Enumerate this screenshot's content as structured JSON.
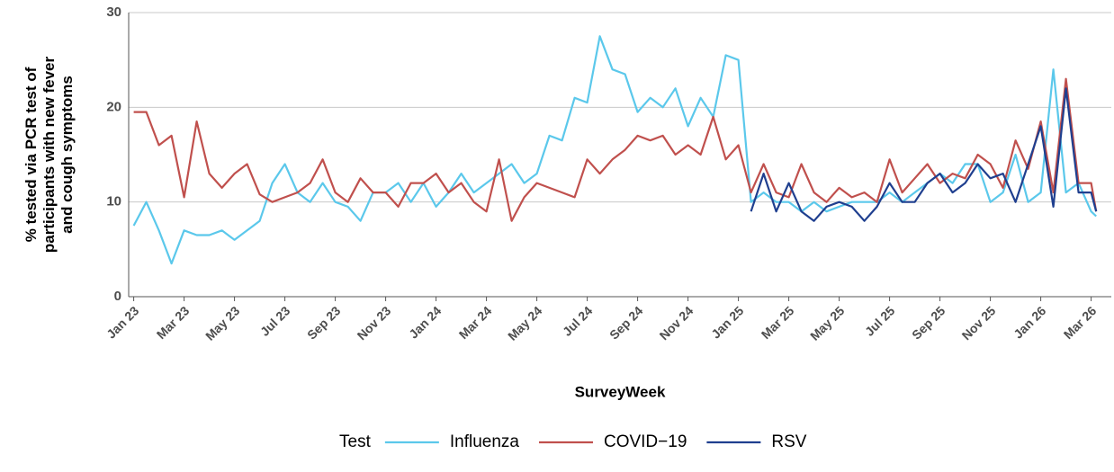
{
  "chart_data": {
    "type": "line",
    "y_label": [
      "% tested via PCR test of",
      "participants with new fever",
      "and cough symptoms"
    ],
    "x_label": "SurveyWeek",
    "legend_title": "Test",
    "legend": "bottom",
    "grid": true,
    "x": [
      0,
      0.5,
      1,
      1.5,
      2,
      2.5,
      3,
      3.5,
      4,
      4.5,
      5,
      5.5,
      6,
      6.5,
      7,
      7.5,
      8,
      8.5,
      9,
      9.5,
      10,
      10.5,
      11,
      11.5,
      12,
      12.5,
      13,
      13.5,
      14,
      14.5,
      15,
      15.5,
      16,
      16.5,
      17,
      17.5,
      18,
      18.5,
      19,
      19.5,
      20,
      20.5,
      21,
      21.5,
      22,
      22.5,
      23,
      23.5,
      24,
      24.5,
      25,
      25.5,
      26,
      26.5,
      27,
      27.5,
      28,
      28.5,
      29,
      29.5,
      30,
      30.5,
      31,
      31.5,
      32,
      32.5,
      33,
      33.5,
      34,
      34.5,
      35,
      35.5,
      36,
      36.5,
      37,
      37.5,
      38,
      38.2
    ],
    "xlim": [
      -0.2,
      38.8
    ],
    "xticks": [
      {
        "value": 0,
        "label": "Jan 23"
      },
      {
        "value": 2,
        "label": "Mar 23"
      },
      {
        "value": 4,
        "label": "May 23"
      },
      {
        "value": 6,
        "label": "Jul 23"
      },
      {
        "value": 8,
        "label": "Sep 23"
      },
      {
        "value": 10,
        "label": "Nov 23"
      },
      {
        "value": 12,
        "label": "Jan 24"
      },
      {
        "value": 14,
        "label": "Mar 24"
      },
      {
        "value": 16,
        "label": "May 24"
      },
      {
        "value": 18,
        "label": "Jul 24"
      },
      {
        "value": 20,
        "label": "Sep 24"
      },
      {
        "value": 22,
        "label": "Nov 24"
      },
      {
        "value": 24,
        "label": "Jan 25"
      },
      {
        "value": 26,
        "label": "Mar 25"
      },
      {
        "value": 28,
        "label": "May 25"
      },
      {
        "value": 30,
        "label": "Jul 25"
      },
      {
        "value": 32,
        "label": "Sep 25"
      },
      {
        "value": 34,
        "label": "Nov 25"
      },
      {
        "value": 36,
        "label": "Jan 26"
      },
      {
        "value": 38,
        "label": "Mar 26"
      }
    ],
    "ylim": [
      0,
      30
    ],
    "yticks": [
      0,
      10,
      20,
      30
    ],
    "series": [
      {
        "name": "Influenza",
        "color": "#5bc8eb",
        "values": [
          7.5,
          10,
          7,
          3.5,
          7,
          6.5,
          6.5,
          7,
          6,
          7,
          8,
          12,
          14,
          11,
          10,
          12,
          10,
          9.5,
          8,
          11,
          11,
          12,
          10,
          12,
          9.5,
          11,
          13,
          11,
          12,
          13,
          14,
          12,
          13,
          17,
          16.5,
          21,
          20.5,
          27.5,
          24,
          23.5,
          19.5,
          21,
          20,
          22,
          18,
          21,
          19,
          25.5,
          25,
          10,
          11,
          10,
          10,
          9,
          10,
          9,
          9.5,
          10,
          10,
          10,
          11,
          10,
          11,
          12,
          13,
          12,
          14,
          14,
          10,
          11,
          15,
          10,
          11,
          24,
          11,
          12,
          9,
          8.5
        ]
      },
      {
        "name": "COVID−19",
        "color": "#c0504d",
        "values": [
          19.5,
          19.5,
          16,
          17,
          10.5,
          18.5,
          13,
          11.5,
          13,
          14,
          10.8,
          10,
          10.5,
          11,
          12,
          14.5,
          11,
          10,
          12.5,
          11,
          11,
          9.5,
          12,
          12,
          13,
          11,
          12,
          10,
          9,
          14.5,
          8,
          10.5,
          12,
          11.5,
          11,
          10.5,
          14.5,
          13,
          14.5,
          15.5,
          17,
          16.5,
          17,
          15,
          16,
          15,
          19,
          14.5,
          16,
          11,
          14,
          11,
          10.5,
          14,
          11,
          10,
          11.5,
          10.5,
          11,
          10,
          14.5,
          11,
          12.5,
          14,
          12,
          13,
          12.5,
          15,
          14,
          11.5,
          16.5,
          13.5,
          18.5,
          11,
          23,
          12,
          12,
          9
        ]
      },
      {
        "name": "RSV",
        "color": "#1f3f8f",
        "values": [
          null,
          null,
          null,
          null,
          null,
          null,
          null,
          null,
          null,
          null,
          null,
          null,
          null,
          null,
          null,
          null,
          null,
          null,
          null,
          null,
          null,
          null,
          null,
          null,
          null,
          null,
          null,
          null,
          null,
          null,
          null,
          null,
          null,
          null,
          null,
          null,
          null,
          null,
          null,
          null,
          null,
          null,
          null,
          null,
          null,
          null,
          null,
          null,
          null,
          9,
          13,
          9,
          12,
          9,
          8,
          9.5,
          10,
          9.5,
          8,
          9.5,
          12,
          10,
          10,
          12,
          13,
          11,
          12,
          14,
          12.5,
          13,
          10,
          14,
          18,
          9.5,
          22,
          11,
          11,
          9
        ]
      }
    ]
  }
}
